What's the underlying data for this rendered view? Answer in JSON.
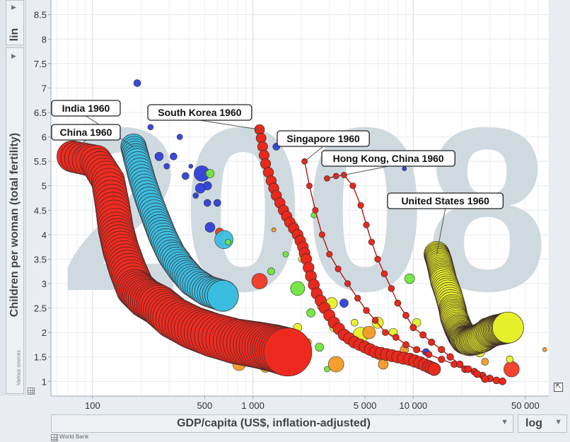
{
  "side": {
    "scale_label": "lin",
    "y_axis_label": "Children per woman (total fertility)",
    "sources_label": "Various sources"
  },
  "bottom": {
    "x_axis_label": "GDP/capita (US$, inflation-adjusted)",
    "x_scale_label": "log",
    "source_label": "World Bank"
  },
  "colors": {
    "plot_bg": "#ffffff",
    "year_watermark": "#cfd9e0",
    "trail_red": "#e8291c",
    "china_red": "#ee2a1f",
    "india_cyan": "#3bbde0",
    "usa_yellow": "#e6f02a",
    "blue": "#2e3fd8",
    "green": "#6fe63b",
    "orange": "#f39a24"
  },
  "chart_data": {
    "type": "scatter",
    "year": "2008",
    "title": "",
    "xlabel": "GDP/capita (US$, inflation-adjusted)",
    "ylabel": "Children per woman (total fertility)",
    "xscale": "log",
    "yscale": "linear",
    "xlim": [
      55,
      70000
    ],
    "ylim": [
      0.7,
      8.8
    ],
    "x_ticks": [
      {
        "value": 100,
        "label": "100"
      },
      {
        "value": 500,
        "label": "500"
      },
      {
        "value": 1000,
        "label": "1 000"
      },
      {
        "value": 5000,
        "label": "5 000"
      },
      {
        "value": 10000,
        "label": "10 000"
      },
      {
        "value": 50000,
        "label": "50 000"
      }
    ],
    "y_ticks": [
      {
        "value": 1,
        "label": "1"
      },
      {
        "value": 1.5,
        "label": "1.5"
      },
      {
        "value": 2,
        "label": "2"
      },
      {
        "value": 2.5,
        "label": "2.5"
      },
      {
        "value": 3,
        "label": "3"
      },
      {
        "value": 3.5,
        "label": "3.5"
      },
      {
        "value": 4,
        "label": "4"
      },
      {
        "value": 4.5,
        "label": "4.5"
      },
      {
        "value": 5,
        "label": "5"
      },
      {
        "value": 5.5,
        "label": "5.5"
      },
      {
        "value": 6,
        "label": "6"
      },
      {
        "value": 6.5,
        "label": "6.5"
      },
      {
        "value": 7,
        "label": "7"
      },
      {
        "value": 7.5,
        "label": "7.5"
      },
      {
        "value": 8,
        "label": "8"
      },
      {
        "value": 8.5,
        "label": "8.5"
      }
    ],
    "trails": [
      {
        "name": "China",
        "color": "#ee2a1f",
        "size": "huge",
        "points": [
          [
            75,
            5.6
          ],
          [
            105,
            5.5
          ],
          [
            125,
            5.1
          ],
          [
            133,
            4.6
          ],
          [
            140,
            4.1
          ],
          [
            150,
            3.7
          ],
          [
            165,
            3.3
          ],
          [
            185,
            2.9
          ],
          [
            215,
            2.7
          ],
          [
            260,
            2.55
          ],
          [
            320,
            2.3
          ],
          [
            420,
            2.1
          ],
          [
            560,
            1.95
          ],
          [
            780,
            1.82
          ],
          [
            1050,
            1.75
          ],
          [
            1350,
            1.68
          ],
          [
            1650,
            1.6
          ]
        ]
      },
      {
        "name": "India",
        "color": "#3bbde0",
        "size": "large",
        "points": [
          [
            180,
            5.8
          ],
          [
            190,
            5.5
          ],
          [
            205,
            5.1
          ],
          [
            225,
            4.7
          ],
          [
            250,
            4.3
          ],
          [
            275,
            3.95
          ],
          [
            310,
            3.6
          ],
          [
            360,
            3.3
          ],
          [
            420,
            3.05
          ],
          [
            520,
            2.85
          ],
          [
            650,
            2.75
          ]
        ]
      },
      {
        "name": "South Korea",
        "color": "#e8291c",
        "size": "medium",
        "points": [
          [
            1100,
            6.15
          ],
          [
            1150,
            5.8
          ],
          [
            1200,
            5.45
          ],
          [
            1300,
            5.1
          ],
          [
            1400,
            4.8
          ],
          [
            1550,
            4.5
          ],
          [
            1700,
            4.25
          ],
          [
            1900,
            4.0
          ],
          [
            2050,
            3.75
          ],
          [
            2150,
            3.5
          ],
          [
            2300,
            3.15
          ],
          [
            2500,
            2.8
          ],
          [
            2800,
            2.5
          ],
          [
            3200,
            2.2
          ],
          [
            3700,
            1.95
          ],
          [
            4300,
            1.8
          ],
          [
            5000,
            1.7
          ],
          [
            5800,
            1.6
          ],
          [
            6800,
            1.55
          ],
          [
            8000,
            1.5
          ],
          [
            9500,
            1.45
          ],
          [
            11000,
            1.38
          ],
          [
            12500,
            1.3
          ],
          [
            13500,
            1.25
          ]
        ]
      },
      {
        "name": "Singapore",
        "color": "#e8291c",
        "size": "small",
        "points": [
          [
            2100,
            5.5
          ],
          [
            2250,
            5.0
          ],
          [
            2450,
            4.5
          ],
          [
            2700,
            4.0
          ],
          [
            3000,
            3.6
          ],
          [
            3400,
            3.3
          ],
          [
            3900,
            3.0
          ],
          [
            4500,
            2.7
          ],
          [
            5100,
            2.45
          ],
          [
            5800,
            2.25
          ],
          [
            6700,
            2.0
          ],
          [
            7800,
            1.9
          ],
          [
            9000,
            1.75
          ],
          [
            10500,
            1.65
          ],
          [
            12500,
            1.55
          ],
          [
            15000,
            1.45
          ],
          [
            18000,
            1.35
          ],
          [
            21000,
            1.25
          ],
          [
            24000,
            1.2
          ],
          [
            27000,
            1.12
          ],
          [
            30000,
            1.06
          ],
          [
            33000,
            1.02
          ],
          [
            36000,
            1.0
          ]
        ]
      },
      {
        "name": "Hong Kong, China",
        "color": "#e8291c",
        "size": "small",
        "points": [
          [
            2900,
            5.15
          ],
          [
            3300,
            5.2
          ],
          [
            3700,
            5.22
          ],
          [
            4200,
            5.0
          ],
          [
            4700,
            4.6
          ],
          [
            5100,
            4.2
          ],
          [
            5500,
            3.85
          ],
          [
            6000,
            3.5
          ],
          [
            6600,
            3.2
          ],
          [
            7300,
            2.9
          ],
          [
            8000,
            2.6
          ],
          [
            9000,
            2.35
          ],
          [
            10000,
            2.1
          ],
          [
            11500,
            1.95
          ],
          [
            13000,
            1.8
          ],
          [
            15000,
            1.65
          ],
          [
            17000,
            1.5
          ],
          [
            19500,
            1.35
          ],
          [
            22000,
            1.25
          ],
          [
            25000,
            1.15
          ],
          [
            28000,
            1.05
          ]
        ]
      },
      {
        "name": "United States",
        "color": "#e6f02a",
        "size": "large",
        "points": [
          [
            14000,
            3.6
          ],
          [
            14500,
            3.45
          ],
          [
            15000,
            3.25
          ],
          [
            15500,
            3.05
          ],
          [
            16500,
            2.8
          ],
          [
            17500,
            2.5
          ],
          [
            18000,
            2.3
          ],
          [
            19000,
            2.1
          ],
          [
            20000,
            1.95
          ],
          [
            21000,
            1.85
          ],
          [
            22500,
            1.82
          ],
          [
            24500,
            1.85
          ],
          [
            27000,
            1.9
          ],
          [
            30000,
            2.0
          ],
          [
            33000,
            2.05
          ],
          [
            36000,
            2.07
          ],
          [
            39000,
            2.1
          ]
        ]
      }
    ],
    "other_bubbles": [
      {
        "x": 190,
        "y": 7.1,
        "color": "#2e3fd8",
        "r": 5
      },
      {
        "x": 230,
        "y": 6.2,
        "color": "#2e3fd8",
        "r": 4
      },
      {
        "x": 260,
        "y": 5.6,
        "color": "#2e3fd8",
        "r": 6
      },
      {
        "x": 290,
        "y": 5.4,
        "color": "#2e3fd8",
        "r": 4
      },
      {
        "x": 320,
        "y": 5.6,
        "color": "#2e3fd8",
        "r": 5
      },
      {
        "x": 350,
        "y": 6.0,
        "color": "#2e3fd8",
        "r": 4
      },
      {
        "x": 380,
        "y": 5.2,
        "color": "#2e3fd8",
        "r": 5
      },
      {
        "x": 410,
        "y": 5.4,
        "color": "#2e3fd8",
        "r": 3
      },
      {
        "x": 480,
        "y": 5.25,
        "color": "#2e3fd8",
        "r": 11
      },
      {
        "x": 520,
        "y": 5.0,
        "color": "#2e3fd8",
        "r": 6
      },
      {
        "x": 470,
        "y": 4.95,
        "color": "#2e3fd8",
        "r": 7
      },
      {
        "x": 520,
        "y": 4.65,
        "color": "#2e3fd8",
        "r": 5
      },
      {
        "x": 600,
        "y": 4.65,
        "color": "#2e3fd8",
        "r": 5
      },
      {
        "x": 540,
        "y": 4.15,
        "color": "#2e3fd8",
        "r": 7
      },
      {
        "x": 620,
        "y": 4.05,
        "color": "#ef3a25",
        "r": 6
      },
      {
        "x": 540,
        "y": 5.25,
        "color": "#6fe63b",
        "r": 6
      },
      {
        "x": 440,
        "y": 4.8,
        "color": "#2e3fd8",
        "r": 4
      },
      {
        "x": 250,
        "y": 6.4,
        "color": "#2e3fd8",
        "r": 4
      },
      {
        "x": 150,
        "y": 4.6,
        "color": "#2e3fd8",
        "r": 4
      },
      {
        "x": 1400,
        "y": 5.8,
        "color": "#2e3fd8",
        "r": 5
      },
      {
        "x": 8800,
        "y": 5.35,
        "color": "#2e3fd8",
        "r": 3
      },
      {
        "x": 660,
        "y": 3.9,
        "color": "#3bbde0",
        "r": 13
      },
      {
        "x": 360,
        "y": 3.1,
        "color": "#3bbde0",
        "r": 6
      },
      {
        "x": 380,
        "y": 2.4,
        "color": "#3bbde0",
        "r": 12
      },
      {
        "x": 1100,
        "y": 3.05,
        "color": "#ef3a25",
        "r": 11
      },
      {
        "x": 1300,
        "y": 3.25,
        "color": "#6fe63b",
        "r": 5
      },
      {
        "x": 1600,
        "y": 3.6,
        "color": "#6fe63b",
        "r": 4
      },
      {
        "x": 1900,
        "y": 2.9,
        "color": "#6fe63b",
        "r": 10
      },
      {
        "x": 2300,
        "y": 2.4,
        "color": "#6fe63b",
        "r": 6
      },
      {
        "x": 2700,
        "y": 2.55,
        "color": "#f39a24",
        "r": 7
      },
      {
        "x": 3100,
        "y": 2.6,
        "color": "#e6f02a",
        "r": 8
      },
      {
        "x": 3200,
        "y": 2.1,
        "color": "#e6f02a",
        "r": 6
      },
      {
        "x": 3700,
        "y": 2.6,
        "color": "#2e3fd8",
        "r": 6
      },
      {
        "x": 4300,
        "y": 2.2,
        "color": "#e6f02a",
        "r": 5
      },
      {
        "x": 4700,
        "y": 1.95,
        "color": "#e6f02a",
        "r": 11
      },
      {
        "x": 5300,
        "y": 2.0,
        "color": "#f39a24",
        "r": 9
      },
      {
        "x": 6000,
        "y": 2.2,
        "color": "#e6f02a",
        "r": 8
      },
      {
        "x": 6200,
        "y": 1.55,
        "color": "#f39a24",
        "r": 8
      },
      {
        "x": 6500,
        "y": 1.35,
        "color": "#f39a24",
        "r": 7
      },
      {
        "x": 7500,
        "y": 2.0,
        "color": "#e6f02a",
        "r": 6
      },
      {
        "x": 8800,
        "y": 1.65,
        "color": "#f39a24",
        "r": 6
      },
      {
        "x": 9500,
        "y": 3.1,
        "color": "#6fe63b",
        "r": 7
      },
      {
        "x": 10500,
        "y": 2.2,
        "color": "#e6f02a",
        "r": 6
      },
      {
        "x": 12000,
        "y": 1.6,
        "color": "#2e3fd8",
        "r": 5
      },
      {
        "x": 3300,
        "y": 1.35,
        "color": "#f39a24",
        "r": 11
      },
      {
        "x": 1000,
        "y": 1.5,
        "color": "#ef3a25",
        "r": 5
      },
      {
        "x": 1200,
        "y": 1.3,
        "color": "#f39a24",
        "r": 8
      },
      {
        "x": 1450,
        "y": 1.9,
        "color": "#f39a24",
        "r": 6
      },
      {
        "x": 1900,
        "y": 2.1,
        "color": "#e6f02a",
        "r": 6
      },
      {
        "x": 2200,
        "y": 1.8,
        "color": "#f39a24",
        "r": 5
      },
      {
        "x": 2600,
        "y": 1.7,
        "color": "#6fe63b",
        "r": 6
      },
      {
        "x": 2900,
        "y": 1.25,
        "color": "#6fe63b",
        "r": 4
      },
      {
        "x": 24000,
        "y": 1.9,
        "color": "#f39a24",
        "r": 8
      },
      {
        "x": 26000,
        "y": 1.6,
        "color": "#e6f02a",
        "r": 7
      },
      {
        "x": 28000,
        "y": 1.4,
        "color": "#f39a24",
        "r": 5
      },
      {
        "x": 41000,
        "y": 1.25,
        "color": "#ef3a25",
        "r": 11
      },
      {
        "x": 40000,
        "y": 1.45,
        "color": "#e6f02a",
        "r": 5
      },
      {
        "x": 66000,
        "y": 1.65,
        "color": "#f39a24",
        "r": 3
      },
      {
        "x": 28000,
        "y": 2.15,
        "color": "#e6f02a",
        "r": 10
      },
      {
        "x": 31000,
        "y": 2.05,
        "color": "#e6f02a",
        "r": 12
      },
      {
        "x": 17500,
        "y": 2.2,
        "color": "#f39a24",
        "r": 7
      },
      {
        "x": 19000,
        "y": 1.8,
        "color": "#e6f02a",
        "r": 6
      },
      {
        "x": 700,
        "y": 2.0,
        "color": "#f39a24",
        "r": 5
      },
      {
        "x": 330,
        "y": 3.2,
        "color": "#ef3a25",
        "r": 6
      },
      {
        "x": 360,
        "y": 2.15,
        "color": "#f39a24",
        "r": 4
      },
      {
        "x": 820,
        "y": 1.35,
        "color": "#f39a24",
        "r": 9
      },
      {
        "x": 2000,
        "y": 3.5,
        "color": "#e6f02a",
        "r": 4
      },
      {
        "x": 1800,
        "y": 4.2,
        "color": "#e6f02a",
        "r": 5
      },
      {
        "x": 700,
        "y": 3.85,
        "color": "#6fe63b",
        "r": 4
      },
      {
        "x": 1350,
        "y": 4.1,
        "color": "#f39a24",
        "r": 3
      },
      {
        "x": 2400,
        "y": 4.4,
        "color": "#6fe63b",
        "r": 4
      }
    ],
    "annotations": [
      {
        "text": "India 1960",
        "x": 180,
        "y": 5.8
      },
      {
        "text": "China 1960",
        "x": 75,
        "y": 5.6
      },
      {
        "text": "South Korea 1960",
        "x": 1100,
        "y": 6.15
      },
      {
        "text": "Singapore 1960",
        "x": 2100,
        "y": 5.5
      },
      {
        "text": "Hong Kong, China 1960",
        "x": 2900,
        "y": 5.15
      },
      {
        "text": "United States 1960",
        "x": 14000,
        "y": 3.6
      }
    ],
    "legend": "none",
    "grid": true
  }
}
